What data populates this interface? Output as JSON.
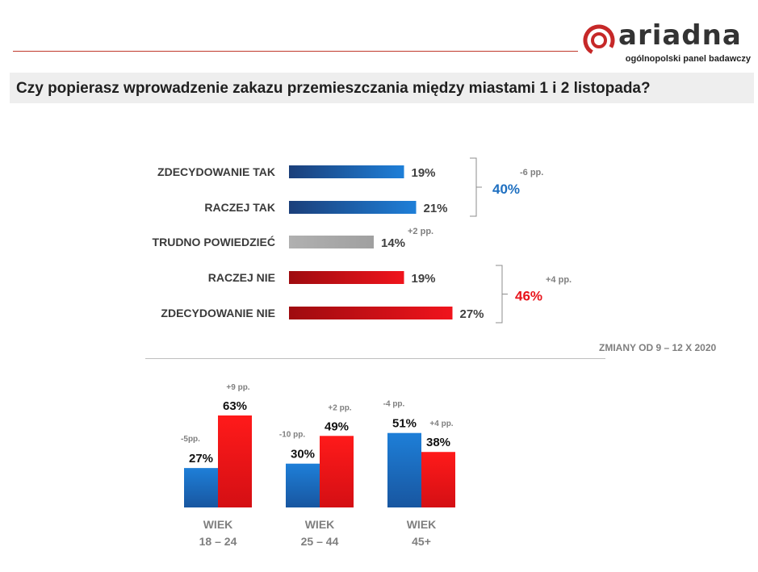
{
  "header": {
    "brand": "ariadna",
    "tagline": "ogólnopolski panel badawczy",
    "question": "Czy popierasz wprowadzenie zakazu przemieszczania między miastami 1 i 2 listopada?"
  },
  "chart_data": [
    {
      "type": "bar",
      "orientation": "horizontal",
      "categories": [
        "ZDECYDOWANIE TAK",
        "RACZEJ TAK",
        "TRUDNO POWIEDZIEĆ",
        "RACZEJ NIE",
        "ZDECYDOWANIE NIE"
      ],
      "values": [
        19,
        21,
        14,
        19,
        27
      ],
      "value_labels": [
        "19%",
        "21%",
        "14%",
        "19%",
        "27%"
      ],
      "groups": [
        {
          "name": "tak",
          "members": [
            0,
            1
          ],
          "total": "40%",
          "change": "-6 pp.",
          "color": "#1e6fc0"
        },
        {
          "name": "trudno",
          "members": [
            2
          ],
          "total": "",
          "change": "+2 pp.",
          "color": "#a6a6a6"
        },
        {
          "name": "nie",
          "members": [
            3,
            4
          ],
          "total": "46%",
          "change": "+4 pp.",
          "color": "#e8141b"
        }
      ],
      "xlim": [
        0,
        30
      ]
    },
    {
      "type": "bar",
      "orientation": "vertical",
      "categories": [
        "WIEK\n18 – 24",
        "WIEK\n25 – 44",
        "WIEK\n45+"
      ],
      "category_lines": [
        [
          "WIEK",
          "18 – 24"
        ],
        [
          "WIEK",
          "25 – 44"
        ],
        [
          "WIEK",
          "45+"
        ]
      ],
      "series": [
        {
          "name": "tak",
          "color": "#1e6fc0",
          "values": [
            27,
            30,
            51
          ],
          "labels": [
            "27%",
            "30%",
            "51%"
          ],
          "changes": [
            "-5pp.",
            "-10 pp.",
            "-4 pp."
          ]
        },
        {
          "name": "nie",
          "color": "#e8141b",
          "values": [
            63,
            49,
            38
          ],
          "labels": [
            "63%",
            "49%",
            "38%"
          ],
          "changes": [
            "+9 pp.",
            "+2 pp.",
            "+4 pp."
          ]
        }
      ],
      "ylim": [
        0,
        70
      ]
    }
  ],
  "footnote": "ZMIANY OD 9 – 12 X 2020"
}
